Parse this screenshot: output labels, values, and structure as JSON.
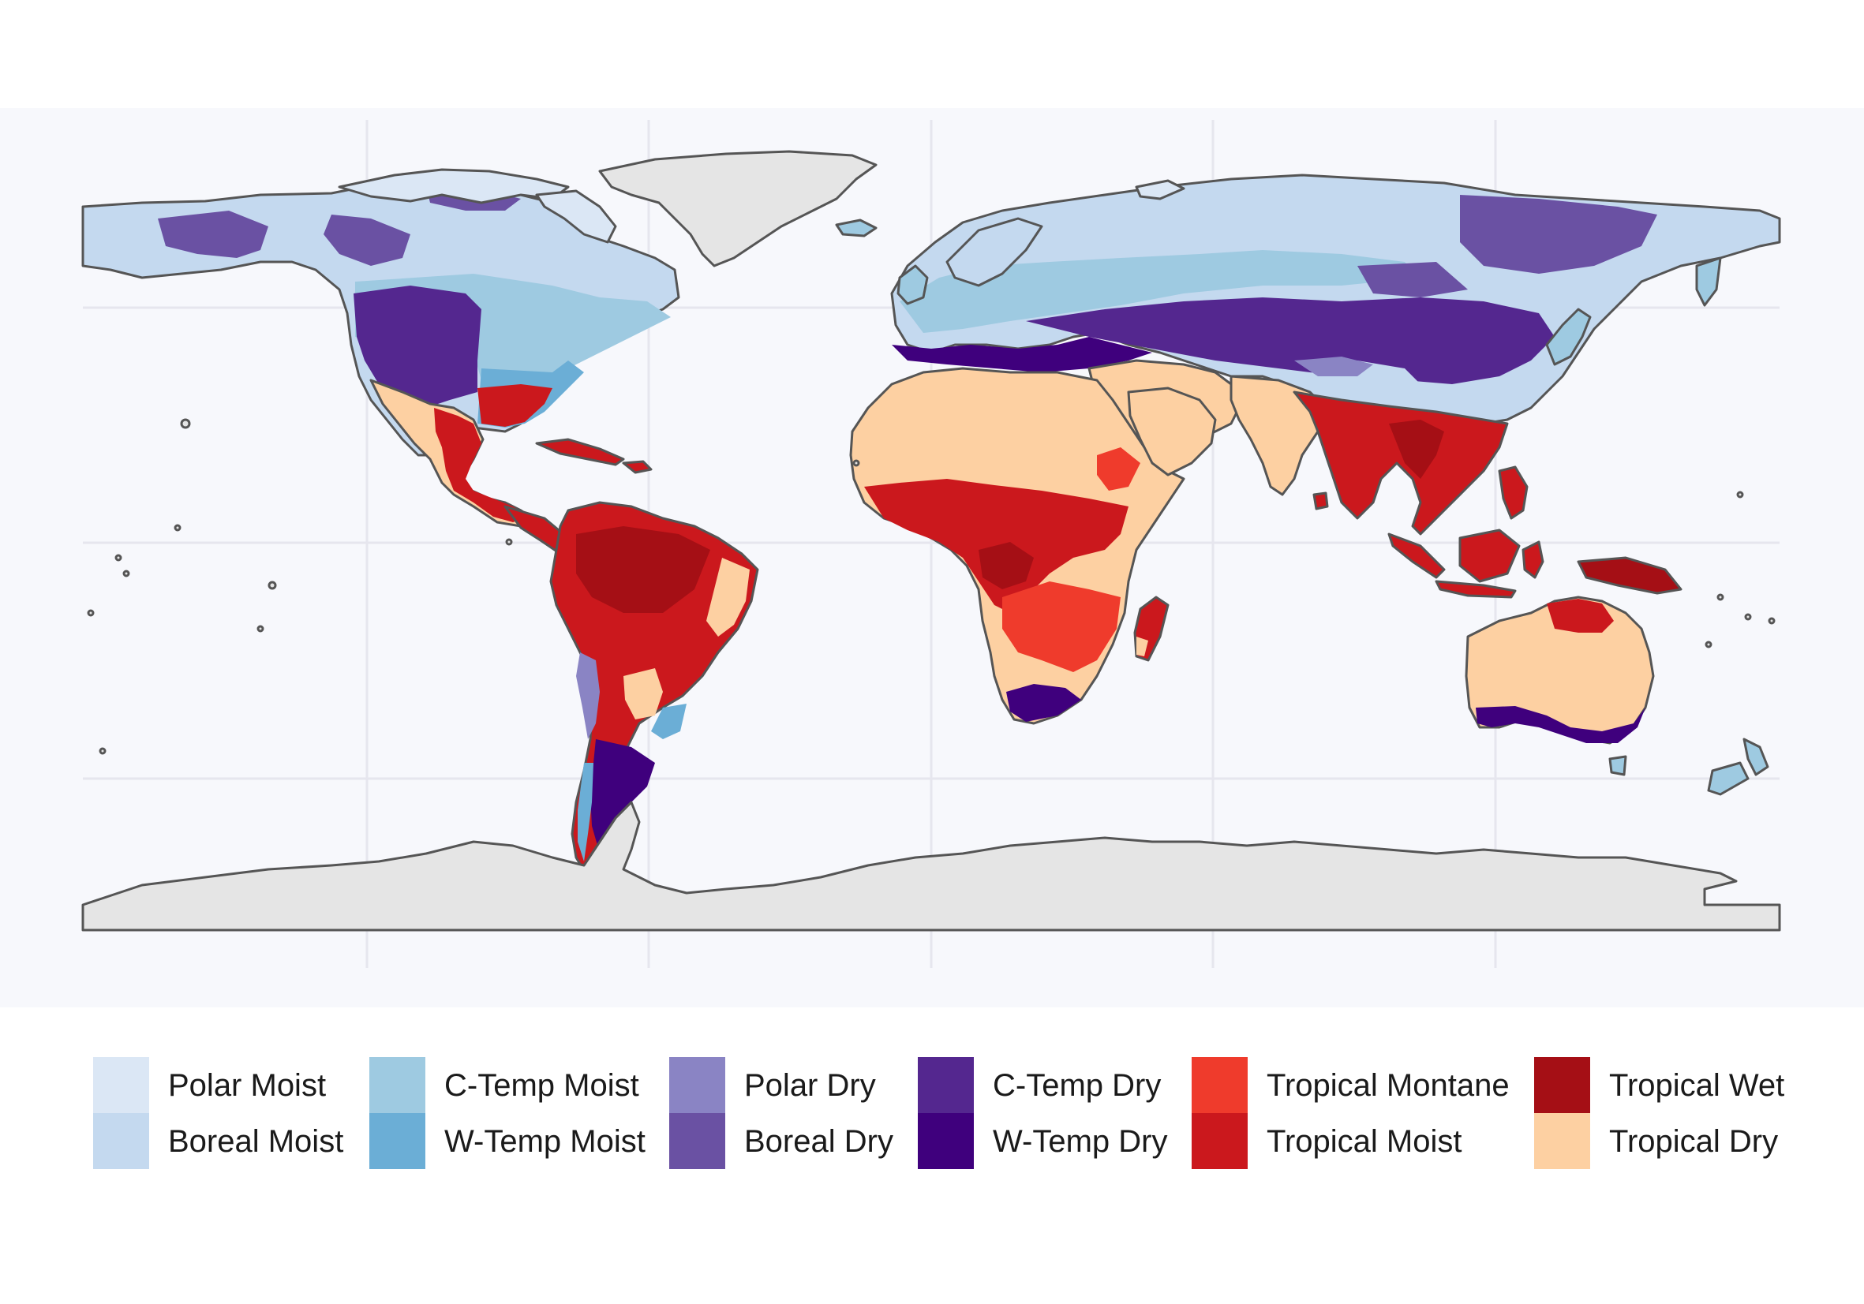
{
  "map": {
    "background": "#f7f8fc",
    "gridline_color": "#e6e6ee",
    "land_fill": "#e5e5e5",
    "outline_color": "#555555"
  },
  "legend": {
    "entries": [
      {
        "label": "Polar Moist",
        "color": "#dbe7f5"
      },
      {
        "label": "Boreal Moist",
        "color": "#c4d9ef"
      },
      {
        "label": "C-Temp Moist",
        "color": "#9ecae1"
      },
      {
        "label": "W-Temp Moist",
        "color": "#6baed6"
      },
      {
        "label": "Polar Dry",
        "color": "#8a84c4"
      },
      {
        "label": "Boreal Dry",
        "color": "#6a51a3"
      },
      {
        "label": "C-Temp Dry",
        "color": "#54278f"
      },
      {
        "label": "W-Temp Dry",
        "color": "#3f007d"
      },
      {
        "label": "Tropical Montane",
        "color": "#ef3b2c"
      },
      {
        "label": "Tropical Moist",
        "color": "#cb181d"
      },
      {
        "label": "Tropical Wet",
        "color": "#a50f15"
      },
      {
        "label": "Tropical Dry",
        "color": "#fdd0a2"
      }
    ]
  }
}
